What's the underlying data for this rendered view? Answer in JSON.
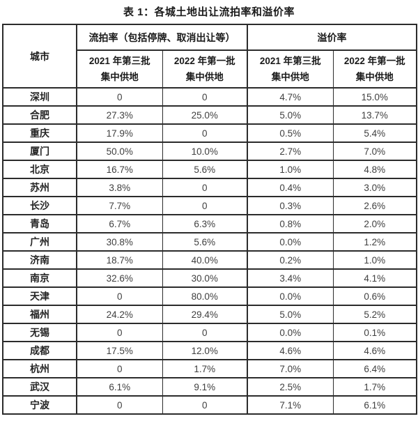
{
  "page_title": "表 1：各城土地出让流拍率和溢价率",
  "colors": {
    "border": "#2b2b2b",
    "text": "#3f3f3f",
    "heading": "#1a1a1a",
    "background": "#ffffff"
  },
  "table": {
    "headers": {
      "city": "城市",
      "failure_group": "流拍率（包括停牌、取消出让等）",
      "premium_group": "溢价率"
    },
    "sub_headers": [
      {
        "line1": "2021 年第三批",
        "line2": "集中供地"
      },
      {
        "line1": "2022 年第一批",
        "line2": "集中供地"
      },
      {
        "line1": "2021 年第三批",
        "line2": "集中供地"
      },
      {
        "line1": "2022 年第一批",
        "line2": "集中供地"
      }
    ],
    "column_keys": [
      "failure-2021q3",
      "failure-2022q1",
      "premium-2021q3",
      "premium-2022q1"
    ],
    "rows": [
      {
        "city": "深圳",
        "cells": [
          "0",
          "0",
          "4.7%",
          "15.0%"
        ]
      },
      {
        "city": "合肥",
        "cells": [
          "27.3%",
          "25.0%",
          "5.0%",
          "13.7%"
        ]
      },
      {
        "city": "重庆",
        "cells": [
          "17.9%",
          "0",
          "0.5%",
          "5.4%"
        ]
      },
      {
        "city": "厦门",
        "cells": [
          "50.0%",
          "10.0%",
          "2.7%",
          "7.0%"
        ]
      },
      {
        "city": "北京",
        "cells": [
          "16.7%",
          "5.6%",
          "1.0%",
          "4.8%"
        ]
      },
      {
        "city": "苏州",
        "cells": [
          "3.8%",
          "0",
          "0.4%",
          "3.0%"
        ]
      },
      {
        "city": "长沙",
        "cells": [
          "7.7%",
          "0",
          "0.3%",
          "2.6%"
        ]
      },
      {
        "city": "青岛",
        "cells": [
          "6.7%",
          "6.3%",
          "0.8%",
          "2.0%"
        ]
      },
      {
        "city": "广州",
        "cells": [
          "30.8%",
          "5.6%",
          "0.0%",
          "1.2%"
        ]
      },
      {
        "city": "济南",
        "cells": [
          "18.7%",
          "40.0%",
          "0.2%",
          "1.0%"
        ]
      },
      {
        "city": "南京",
        "cells": [
          "32.6%",
          "30.0%",
          "3.4%",
          "4.1%"
        ]
      },
      {
        "city": "天津",
        "cells": [
          "0",
          "80.0%",
          "0.0%",
          "0.6%"
        ]
      },
      {
        "city": "福州",
        "cells": [
          "24.2%",
          "29.4%",
          "5.0%",
          "5.2%"
        ]
      },
      {
        "city": "无锡",
        "cells": [
          "0",
          "0",
          "0.0%",
          "0.1%"
        ]
      },
      {
        "city": "成都",
        "cells": [
          "17.5%",
          "12.0%",
          "4.6%",
          "4.6%"
        ]
      },
      {
        "city": "杭州",
        "cells": [
          "0",
          "1.7%",
          "7.0%",
          "6.4%"
        ]
      },
      {
        "city": "武汉",
        "cells": [
          "6.1%",
          "9.1%",
          "2.5%",
          "1.7%"
        ]
      },
      {
        "city": "宁波",
        "cells": [
          "0",
          "0",
          "7.1%",
          "6.1%"
        ]
      }
    ]
  }
}
